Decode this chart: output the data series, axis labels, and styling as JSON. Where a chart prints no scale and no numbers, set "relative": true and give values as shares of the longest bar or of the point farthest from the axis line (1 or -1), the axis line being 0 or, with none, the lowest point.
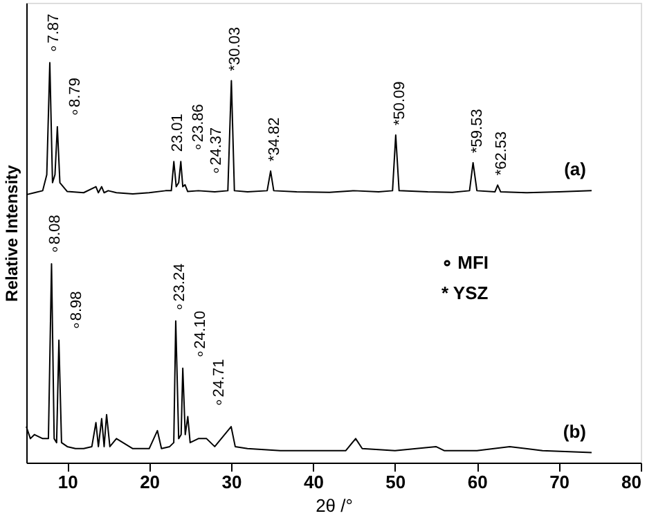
{
  "chart_data": {
    "type": "line",
    "xlabel": "2θ /°",
    "ylabel": "Relative Intensity",
    "relative": true,
    "xlim": [
      5,
      80
    ],
    "xticks": [
      10,
      20,
      30,
      40,
      50,
      60,
      70,
      80
    ],
    "grid": false,
    "marker": "none",
    "line_style": "solid",
    "series": [
      {
        "name": "(a)",
        "color": "#000000",
        "x": [
          5,
          6,
          7,
          7.5,
          7.87,
          8.2,
          8.5,
          8.79,
          9.1,
          10,
          12,
          13.5,
          13.8,
          14.2,
          14.5,
          15,
          16,
          18,
          20,
          22,
          22.7,
          23.01,
          23.3,
          23.6,
          23.86,
          24.1,
          24.37,
          24.7,
          26,
          28,
          29.6,
          30.03,
          30.4,
          32,
          34.4,
          34.82,
          35.2,
          38,
          42,
          45,
          48,
          49.7,
          50.09,
          50.5,
          54,
          57,
          59.1,
          59.53,
          60,
          62.2,
          62.53,
          62.9,
          66,
          70,
          74
        ],
        "values": [
          0.67,
          0.675,
          0.68,
          0.72,
          1.0,
          0.7,
          0.72,
          0.84,
          0.7,
          0.678,
          0.675,
          0.69,
          0.675,
          0.69,
          0.675,
          0.68,
          0.675,
          0.672,
          0.675,
          0.68,
          0.68,
          0.753,
          0.69,
          0.7,
          0.753,
          0.69,
          0.695,
          0.678,
          0.68,
          0.677,
          0.68,
          0.955,
          0.68,
          0.677,
          0.68,
          0.729,
          0.68,
          0.677,
          0.676,
          0.68,
          0.677,
          0.68,
          0.819,
          0.68,
          0.677,
          0.676,
          0.68,
          0.75,
          0.68,
          0.677,
          0.694,
          0.677,
          0.675,
          0.677,
          0.68
        ]
      },
      {
        "name": "(b)",
        "color": "#000000",
        "x": [
          5,
          5.5,
          6,
          7,
          7.7,
          8.08,
          8.4,
          8.7,
          8.98,
          9.3,
          10,
          11,
          12,
          13,
          13.5,
          13.8,
          14.2,
          14.5,
          14.8,
          15.2,
          16,
          18,
          20,
          21,
          21.5,
          22.5,
          23,
          23.24,
          23.6,
          23.9,
          24.1,
          24.4,
          24.71,
          25,
          26,
          27,
          28,
          30,
          30.5,
          32,
          36,
          40,
          44,
          45.2,
          46,
          50,
          55,
          56,
          60,
          64,
          68,
          74
        ],
        "values": [
          0.09,
          0.06,
          0.07,
          0.06,
          0.06,
          0.497,
          0.06,
          0.05,
          0.306,
          0.05,
          0.04,
          0.035,
          0.035,
          0.04,
          0.1,
          0.04,
          0.11,
          0.04,
          0.12,
          0.04,
          0.06,
          0.035,
          0.035,
          0.08,
          0.035,
          0.04,
          0.05,
          0.354,
          0.06,
          0.07,
          0.236,
          0.07,
          0.115,
          0.05,
          0.06,
          0.06,
          0.04,
          0.09,
          0.04,
          0.035,
          0.03,
          0.03,
          0.03,
          0.06,
          0.035,
          0.03,
          0.04,
          0.03,
          0.03,
          0.04,
          0.03,
          0.025
        ]
      }
    ],
    "annotations": [
      {
        "text": "∘7.87",
        "x": 7.87,
        "y": 1.0
      },
      {
        "text": "∘8.79",
        "x": 8.79,
        "y": 0.84
      },
      {
        "text": "23.01",
        "x": 23.01,
        "y": 0.753
      },
      {
        "text": "∘23.86",
        "x": 23.86,
        "y": 0.753
      },
      {
        "text": "∘24.37",
        "x": 24.37,
        "y": 0.695
      },
      {
        "text": "*30.03",
        "x": 30.03,
        "y": 0.955
      },
      {
        "text": "*34.82",
        "x": 34.82,
        "y": 0.729
      },
      {
        "text": "*50.09",
        "x": 50.09,
        "y": 0.819
      },
      {
        "text": "*59.53",
        "x": 59.53,
        "y": 0.75
      },
      {
        "text": "*62.53",
        "x": 62.53,
        "y": 0.694
      },
      {
        "text": "∘8.08",
        "x": 8.08,
        "y": 0.497
      },
      {
        "text": "∘8.98",
        "x": 8.98,
        "y": 0.306
      },
      {
        "text": "∘23.24",
        "x": 23.24,
        "y": 0.354
      },
      {
        "text": "∘24.10",
        "x": 24.1,
        "y": 0.236
      },
      {
        "text": "∘24.71",
        "x": 24.71,
        "y": 0.115
      },
      "∘ MFI",
      "* YSZ"
    ]
  }
}
